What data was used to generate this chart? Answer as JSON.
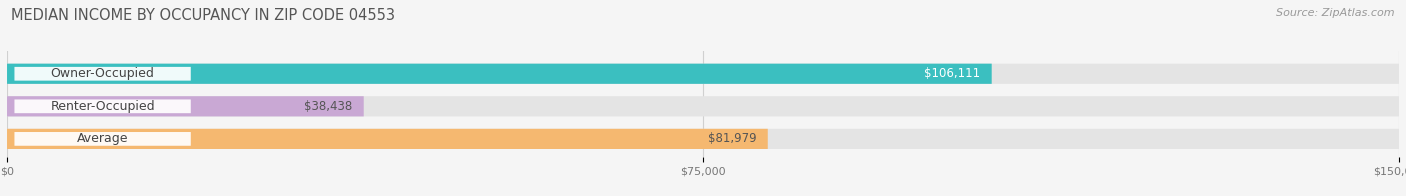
{
  "title": "MEDIAN INCOME BY OCCUPANCY IN ZIP CODE 04553",
  "source": "Source: ZipAtlas.com",
  "categories": [
    "Owner-Occupied",
    "Renter-Occupied",
    "Average"
  ],
  "values": [
    106111,
    38438,
    81979
  ],
  "labels": [
    "$106,111",
    "$38,438",
    "$81,979"
  ],
  "bar_colors": [
    "#3bbfc0",
    "#c9a8d4",
    "#f5b870"
  ],
  "bar_bg_color": "#e8e8e8",
  "xlim": [
    0,
    150000
  ],
  "xticks": [
    0,
    75000,
    150000
  ],
  "xtick_labels": [
    "$0",
    "$75,000",
    "$150,000"
  ],
  "title_fontsize": 10.5,
  "source_fontsize": 8,
  "label_fontsize": 8.5,
  "cat_fontsize": 9,
  "background_color": "#f5f5f5",
  "label_colors": [
    "white",
    "#555555",
    "#555555"
  ]
}
